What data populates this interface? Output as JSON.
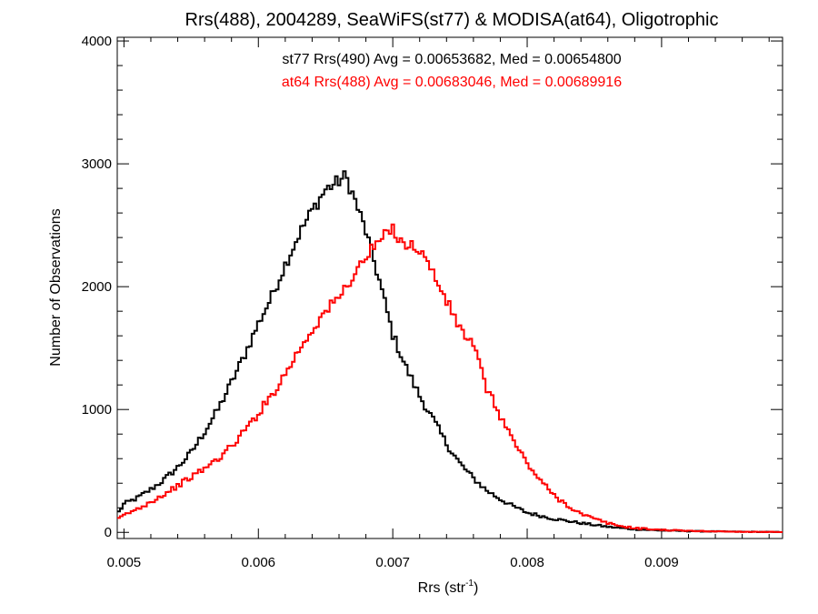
{
  "chart_data": {
    "type": "line",
    "title": "Rrs(488), 2004289, SeaWiFS(st77) & MODISA(at64), Oligotrophic",
    "xlabel_main": "Rrs (str",
    "xlabel_sup": "-1",
    "xlabel_close": ")",
    "ylabel": "Number of Observations",
    "xlim": [
      0.00495,
      0.0099
    ],
    "ylim": [
      -50,
      4030
    ],
    "xticks": [
      0.005,
      0.006,
      0.007,
      0.008,
      0.009
    ],
    "xtick_labels": [
      "0.005",
      "0.006",
      "0.007",
      "0.008",
      "0.009"
    ],
    "yticks": [
      0,
      1000,
      2000,
      3000,
      4000
    ],
    "ytick_labels": [
      "0",
      "1000",
      "2000",
      "3000",
      "4000"
    ],
    "grid": false,
    "annotations": [
      {
        "text": "st77 Rrs(490) Avg = 0.00653682, Med = 0.00654800",
        "color": "#000000"
      },
      {
        "text": "at64 Rrs(488) Avg = 0.00683046, Med = 0.00689916",
        "color": "#ff0000"
      }
    ],
    "series": [
      {
        "color": "#000000",
        "step": "histogram",
        "x": [
          0.00495,
          0.005,
          0.0051,
          0.0052,
          0.0053,
          0.0054,
          0.0055,
          0.0056,
          0.0057,
          0.0058,
          0.0059,
          0.006,
          0.0061,
          0.0062,
          0.0063,
          0.0064,
          0.0065,
          0.0066,
          0.00665,
          0.0067,
          0.0068,
          0.0069,
          0.007,
          0.0071,
          0.0072,
          0.0073,
          0.0074,
          0.0075,
          0.0076,
          0.0077,
          0.0078,
          0.0079,
          0.008,
          0.0082,
          0.0084,
          0.0086,
          0.0088,
          0.009,
          0.0092,
          0.0095,
          0.0099
        ],
        "y": [
          150,
          230,
          280,
          350,
          430,
          530,
          650,
          820,
          1000,
          1220,
          1450,
          1700,
          1920,
          2180,
          2420,
          2620,
          2790,
          2860,
          2900,
          2760,
          2450,
          2050,
          1610,
          1340,
          1110,
          920,
          720,
          560,
          440,
          340,
          270,
          210,
          160,
          110,
          75,
          45,
          25,
          15,
          10,
          6,
          3
        ]
      },
      {
        "color": "#ff0000",
        "step": "histogram",
        "x": [
          0.00495,
          0.005,
          0.0051,
          0.0052,
          0.0053,
          0.0054,
          0.0055,
          0.0056,
          0.0057,
          0.0058,
          0.0059,
          0.006,
          0.0061,
          0.0062,
          0.0063,
          0.0064,
          0.0065,
          0.0066,
          0.0067,
          0.0068,
          0.0069,
          0.007,
          0.00705,
          0.0071,
          0.0072,
          0.0073,
          0.0074,
          0.0075,
          0.0076,
          0.0077,
          0.0078,
          0.0079,
          0.008,
          0.0081,
          0.0082,
          0.0083,
          0.0084,
          0.0085,
          0.0086,
          0.0087,
          0.0088,
          0.009,
          0.0092,
          0.0094,
          0.0096,
          0.0099
        ],
        "y": [
          100,
          140,
          190,
          250,
          310,
          380,
          450,
          520,
          600,
          700,
          830,
          970,
          1120,
          1290,
          1480,
          1650,
          1800,
          1910,
          2080,
          2240,
          2370,
          2470,
          2400,
          2340,
          2310,
          2110,
          1880,
          1660,
          1520,
          1170,
          950,
          740,
          560,
          420,
          300,
          220,
          150,
          110,
          75,
          50,
          35,
          20,
          12,
          8,
          5,
          3
        ]
      }
    ]
  }
}
